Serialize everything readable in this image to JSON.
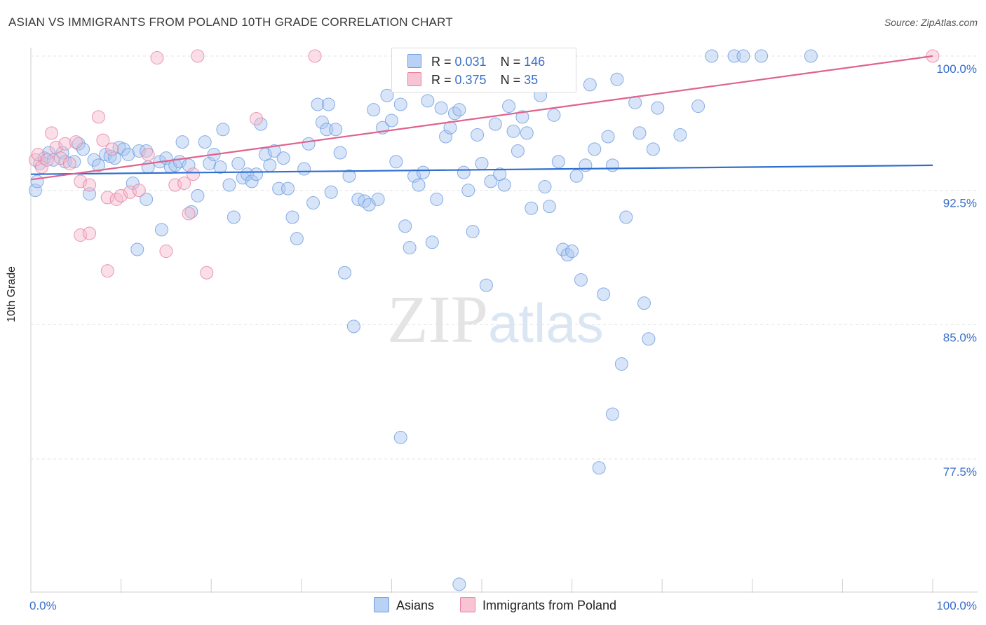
{
  "title": "ASIAN VS IMMIGRANTS FROM POLAND 10TH GRADE CORRELATION CHART",
  "source": "Source: ZipAtlas.com",
  "watermark": {
    "zip": "ZIP",
    "atlas": "atlas"
  },
  "colors": {
    "blue": "#6b9be0",
    "blue_fill": "#a9c6f0",
    "pink": "#e87fa0",
    "pink_fill": "#f5b8cb",
    "line_blue": "#2f6fd0",
    "line_pink": "#e0628e",
    "tick_text": "#3a6fc9"
  },
  "legend": {
    "r1_label": "R = ",
    "r1_value": "0.031",
    "n1_label": "N = ",
    "n1_value": "146",
    "r2_label": "R = ",
    "r2_value": "0.375",
    "n2_label": "N = ",
    "n2_value": "35"
  },
  "bottom_legend": {
    "asians": "Asians",
    "poland": "Immigrants from Poland"
  },
  "chart_data": {
    "type": "scatter",
    "title": "ASIAN VS IMMIGRANTS FROM POLAND 10TH GRADE CORRELATION CHART",
    "xlabel": "",
    "ylabel": "10th Grade",
    "xlim": [
      0,
      100
    ],
    "ylim": [
      70.0,
      101.5
    ],
    "x_tick_labels": [
      "0.0%",
      "100.0%"
    ],
    "y_ticks": [
      77.5,
      85.0,
      92.5,
      100.0
    ],
    "y_tick_labels": [
      "77.5%",
      "85.0%",
      "92.5%",
      "100.0%"
    ],
    "grid": true,
    "legend_position": "top-center",
    "series": [
      {
        "name": "Asians",
        "color": "#6b9be0",
        "trend": {
          "x": [
            0,
            100
          ],
          "y": [
            93.4,
            93.9
          ]
        },
        "points": [
          [
            0.5,
            92.5
          ],
          [
            0.7,
            93.0
          ],
          [
            1.0,
            94.0
          ],
          [
            1.5,
            94.3
          ],
          [
            2.0,
            94.6
          ],
          [
            2.5,
            94.2
          ],
          [
            3.5,
            94.6
          ],
          [
            3.8,
            94.1
          ],
          [
            4.8,
            94.1
          ],
          [
            5.3,
            95.1
          ],
          [
            5.8,
            94.8
          ],
          [
            6.5,
            92.3
          ],
          [
            7.0,
            94.2
          ],
          [
            7.5,
            93.9
          ],
          [
            8.3,
            94.5
          ],
          [
            8.8,
            94.4
          ],
          [
            9.3,
            94.3
          ],
          [
            9.8,
            94.9
          ],
          [
            10.3,
            94.8
          ],
          [
            10.8,
            94.5
          ],
          [
            11.3,
            92.9
          ],
          [
            12.0,
            94.7
          ],
          [
            12.8,
            94.7
          ],
          [
            11.8,
            89.2
          ],
          [
            13.0,
            93.8
          ],
          [
            14.3,
            94.1
          ],
          [
            15.0,
            94.3
          ],
          [
            15.5,
            93.8
          ],
          [
            16.0,
            93.9
          ],
          [
            14.5,
            90.3
          ],
          [
            16.5,
            94.1
          ],
          [
            16.8,
            95.2
          ],
          [
            17.5,
            93.9
          ],
          [
            18.5,
            92.2
          ],
          [
            17.8,
            91.3
          ],
          [
            19.3,
            95.2
          ],
          [
            19.8,
            94.0
          ],
          [
            20.3,
            94.5
          ],
          [
            21.0,
            93.8
          ],
          [
            21.3,
            95.9
          ],
          [
            22.0,
            92.8
          ],
          [
            22.5,
            91.0
          ],
          [
            23.0,
            94.0
          ],
          [
            23.5,
            93.2
          ],
          [
            24.0,
            93.4
          ],
          [
            24.5,
            93.0
          ],
          [
            25.0,
            93.4
          ],
          [
            25.5,
            96.2
          ],
          [
            26.0,
            94.5
          ],
          [
            26.5,
            93.9
          ],
          [
            27.0,
            94.7
          ],
          [
            27.5,
            92.6
          ],
          [
            28.0,
            94.3
          ],
          [
            28.5,
            92.6
          ],
          [
            29.0,
            91.0
          ],
          [
            29.5,
            89.8
          ],
          [
            30.3,
            93.7
          ],
          [
            30.8,
            95.1
          ],
          [
            31.3,
            91.8
          ],
          [
            31.8,
            97.3
          ],
          [
            32.3,
            96.3
          ],
          [
            32.8,
            95.9
          ],
          [
            33.3,
            92.4
          ],
          [
            33.8,
            95.9
          ],
          [
            34.3,
            94.6
          ],
          [
            34.8,
            87.9
          ],
          [
            35.3,
            93.3
          ],
          [
            35.8,
            84.9
          ],
          [
            36.3,
            92.0
          ],
          [
            37.0,
            91.9
          ],
          [
            37.5,
            91.7
          ],
          [
            38.0,
            97.0
          ],
          [
            38.5,
            92.0
          ],
          [
            39.0,
            96.0
          ],
          [
            39.5,
            97.8
          ],
          [
            40.0,
            96.4
          ],
          [
            40.5,
            94.1
          ],
          [
            41.0,
            97.3
          ],
          [
            41.5,
            90.5
          ],
          [
            42.0,
            89.3
          ],
          [
            42.5,
            93.3
          ],
          [
            43.0,
            92.8
          ],
          [
            43.5,
            93.5
          ],
          [
            44.0,
            97.5
          ],
          [
            44.5,
            89.6
          ],
          [
            45.0,
            92.0
          ],
          [
            45.5,
            97.1
          ],
          [
            46.0,
            95.5
          ],
          [
            46.5,
            96.0
          ],
          [
            47.0,
            96.8
          ],
          [
            47.5,
            97.0
          ],
          [
            48.0,
            93.5
          ],
          [
            48.5,
            92.5
          ],
          [
            49.0,
            90.2
          ],
          [
            49.5,
            95.6
          ],
          [
            50.0,
            94.0
          ],
          [
            50.5,
            87.2
          ],
          [
            51.0,
            93.0
          ],
          [
            51.5,
            96.2
          ],
          [
            52.0,
            93.4
          ],
          [
            52.5,
            92.8
          ],
          [
            53.0,
            97.2
          ],
          [
            53.5,
            95.8
          ],
          [
            54.0,
            94.7
          ],
          [
            54.5,
            96.6
          ],
          [
            55.0,
            95.7
          ],
          [
            55.5,
            91.5
          ],
          [
            56.0,
            98.5
          ],
          [
            56.5,
            97.8
          ],
          [
            57.0,
            92.7
          ],
          [
            57.5,
            91.6
          ],
          [
            58.0,
            96.7
          ],
          [
            58.5,
            94.1
          ],
          [
            59.0,
            89.2
          ],
          [
            59.5,
            88.9
          ],
          [
            60.0,
            89.1
          ],
          [
            60.5,
            93.3
          ],
          [
            61.0,
            87.5
          ],
          [
            61.5,
            93.9
          ],
          [
            62.0,
            98.4
          ],
          [
            62.5,
            94.8
          ],
          [
            63.5,
            86.7
          ],
          [
            64.0,
            95.5
          ],
          [
            64.5,
            93.9
          ],
          [
            65.0,
            98.7
          ],
          [
            65.5,
            82.8
          ],
          [
            66.0,
            91.0
          ],
          [
            67.0,
            97.4
          ],
          [
            67.5,
            95.7
          ],
          [
            68.0,
            86.2
          ],
          [
            68.5,
            84.2
          ],
          [
            69.0,
            94.8
          ],
          [
            69.5,
            97.1
          ],
          [
            72.0,
            95.6
          ],
          [
            74.0,
            97.2
          ],
          [
            75.5,
            100.0
          ],
          [
            78.0,
            100.0
          ],
          [
            79.0,
            100.0
          ],
          [
            81.0,
            100.0
          ],
          [
            86.5,
            100.0
          ],
          [
            64.5,
            80.0
          ],
          [
            47.5,
            70.5
          ],
          [
            41.0,
            78.7
          ],
          [
            63.0,
            77.0
          ],
          [
            33.0,
            97.3
          ],
          [
            12.8,
            92.0
          ]
        ]
      },
      {
        "name": "Immigrants from Poland",
        "color": "#e87fa0",
        "trend": {
          "x": [
            0,
            100
          ],
          "y": [
            93.1,
            100.0
          ]
        },
        "points": [
          [
            0.5,
            94.2
          ],
          [
            0.8,
            94.5
          ],
          [
            1.2,
            93.8
          ],
          [
            1.8,
            94.2
          ],
          [
            2.3,
            95.7
          ],
          [
            2.8,
            94.9
          ],
          [
            3.3,
            94.3
          ],
          [
            3.8,
            95.1
          ],
          [
            4.3,
            94.0
          ],
          [
            5.0,
            95.2
          ],
          [
            5.5,
            93.0
          ],
          [
            6.5,
            92.8
          ],
          [
            7.5,
            96.6
          ],
          [
            8.0,
            95.3
          ],
          [
            8.5,
            92.1
          ],
          [
            9.0,
            94.8
          ],
          [
            9.5,
            92.0
          ],
          [
            10.0,
            92.2
          ],
          [
            11.0,
            92.4
          ],
          [
            12.0,
            92.5
          ],
          [
            13.0,
            94.5
          ],
          [
            14.0,
            99.9
          ],
          [
            15.0,
            89.1
          ],
          [
            16.0,
            92.8
          ],
          [
            17.0,
            92.9
          ],
          [
            17.5,
            91.2
          ],
          [
            18.0,
            93.4
          ],
          [
            18.5,
            100.0
          ],
          [
            19.5,
            87.9
          ],
          [
            25.0,
            96.5
          ],
          [
            31.5,
            100.0
          ],
          [
            5.5,
            90.0
          ],
          [
            6.5,
            90.1
          ],
          [
            8.5,
            88.0
          ],
          [
            100.0,
            100.0
          ]
        ]
      }
    ]
  }
}
